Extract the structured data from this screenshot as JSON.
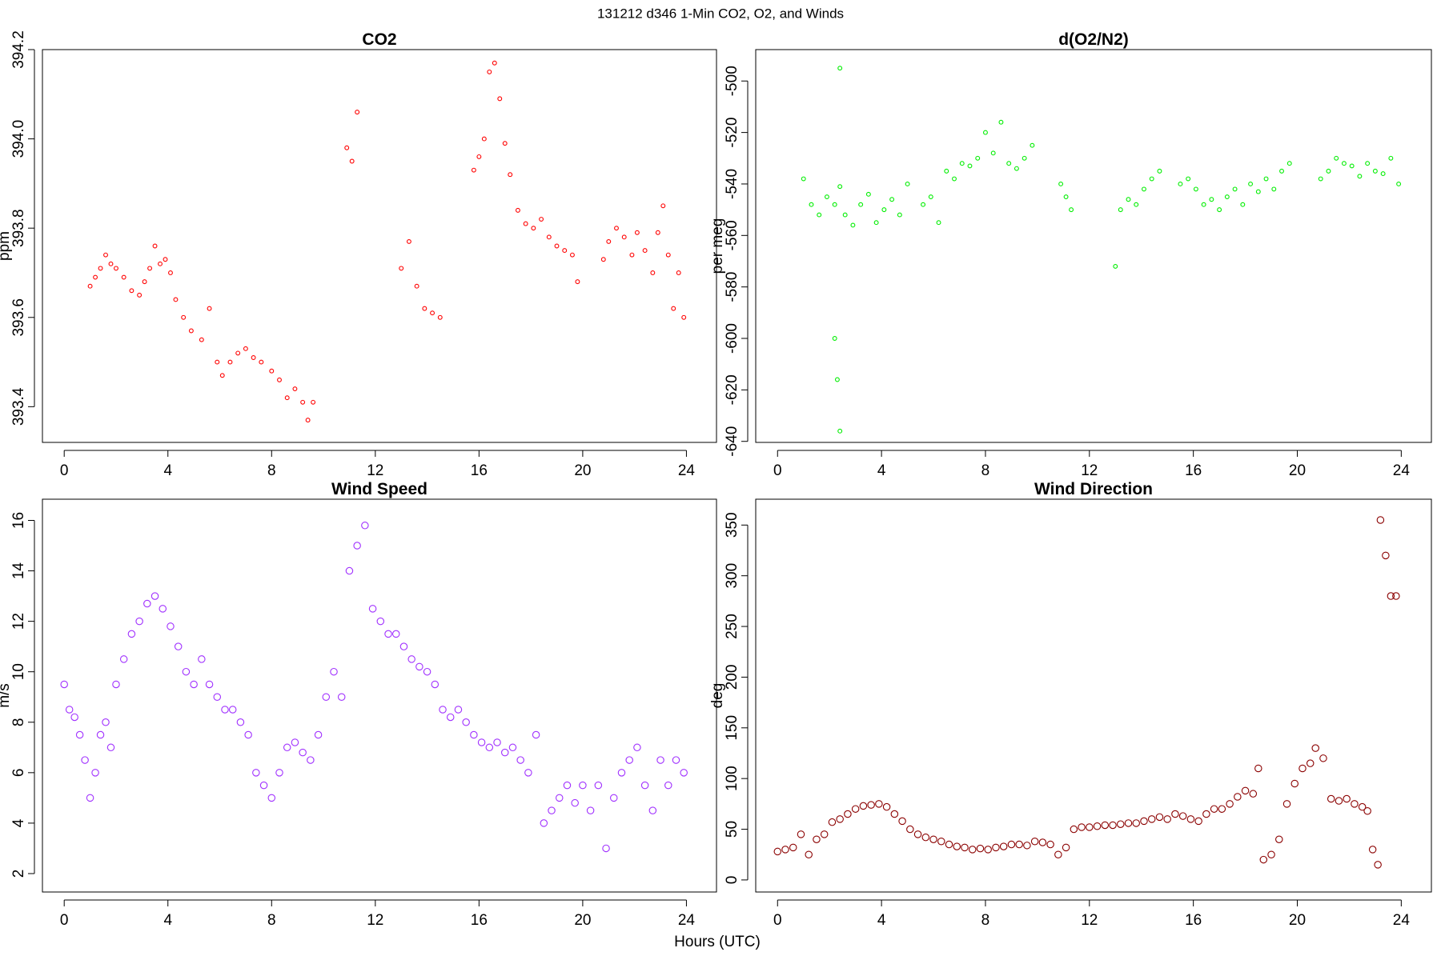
{
  "title": "131212   d346   1-Min CO2, O2, and Winds",
  "xlabel": "Hours (UTC)",
  "chart_data": [
    {
      "type": "scatter",
      "title": "CO2",
      "ylabel": "ppm",
      "color": "#ff0000",
      "xlim": [
        -0.84,
        25.16
      ],
      "ylim": [
        393.32,
        394.2
      ],
      "xticks": [
        0,
        4,
        8,
        12,
        16,
        20,
        24
      ],
      "yticks": [
        393.4,
        393.6,
        393.8,
        {
          "value": 394,
          "label": "394.0"
        },
        394.2
      ],
      "x": [
        1.0,
        1.2,
        1.4,
        1.6,
        1.8,
        2.0,
        2.3,
        2.6,
        2.9,
        3.1,
        3.3,
        3.5,
        3.7,
        3.9,
        4.1,
        4.3,
        4.6,
        4.9,
        5.3,
        5.6,
        5.9,
        6.1,
        6.4,
        6.7,
        7.0,
        7.3,
        7.6,
        8.0,
        8.3,
        8.6,
        8.9,
        9.2,
        9.4,
        9.6,
        10.9,
        11.1,
        11.3,
        13.0,
        13.3,
        13.6,
        13.9,
        14.2,
        14.5,
        15.8,
        16.0,
        16.2,
        16.4,
        16.6,
        16.8,
        17.0,
        17.2,
        17.5,
        17.8,
        18.1,
        18.4,
        18.7,
        19.0,
        19.3,
        19.6,
        19.8,
        20.8,
        21.0,
        21.3,
        21.6,
        21.9,
        22.1,
        22.4,
        22.7,
        22.9,
        23.1,
        23.3,
        23.5,
        23.7,
        23.9
      ],
      "values": [
        393.67,
        393.69,
        393.71,
        393.74,
        393.72,
        393.71,
        393.69,
        393.66,
        393.65,
        393.68,
        393.71,
        393.76,
        393.72,
        393.73,
        393.7,
        393.64,
        393.6,
        393.57,
        393.55,
        393.62,
        393.5,
        393.47,
        393.5,
        393.52,
        393.53,
        393.51,
        393.5,
        393.48,
        393.46,
        393.42,
        393.44,
        393.41,
        393.37,
        393.41,
        393.98,
        393.95,
        394.06,
        393.71,
        393.77,
        393.67,
        393.62,
        393.61,
        393.6,
        393.93,
        393.96,
        394.0,
        394.15,
        394.17,
        394.09,
        393.99,
        393.92,
        393.84,
        393.81,
        393.8,
        393.82,
        393.78,
        393.76,
        393.75,
        393.74,
        393.68,
        393.73,
        393.77,
        393.8,
        393.78,
        393.74,
        393.79,
        393.75,
        393.7,
        393.79,
        393.85,
        393.74,
        393.62,
        393.7,
        393.6
      ]
    },
    {
      "type": "scatter",
      "title": "d(O2/N2)",
      "ylabel": "per meg",
      "color": "#00ee00",
      "xlim": [
        -0.84,
        25.16
      ],
      "ylim": [
        -640.4,
        -487.8
      ],
      "xticks": [
        0,
        4,
        8,
        12,
        16,
        20,
        24
      ],
      "yticks": [
        -640,
        -620,
        -600,
        -580,
        -560,
        -540,
        -520,
        -500
      ],
      "x": [
        1.0,
        1.3,
        1.6,
        1.9,
        2.2,
        2.4,
        2.2,
        2.3,
        2.4,
        2.4,
        2.6,
        2.9,
        3.2,
        3.5,
        3.8,
        4.1,
        4.4,
        4.7,
        5.0,
        5.6,
        5.9,
        6.2,
        6.5,
        6.8,
        7.1,
        7.4,
        7.7,
        8.0,
        8.3,
        8.6,
        8.9,
        9.2,
        9.5,
        9.8,
        10.9,
        11.1,
        11.3,
        13.0,
        13.2,
        13.5,
        13.8,
        14.1,
        14.4,
        14.7,
        15.5,
        15.8,
        16.1,
        16.4,
        16.7,
        17.0,
        17.3,
        17.6,
        17.9,
        18.2,
        18.5,
        18.8,
        19.1,
        19.4,
        19.7,
        20.9,
        21.2,
        21.5,
        21.8,
        22.1,
        22.4,
        22.7,
        23.0,
        23.3,
        23.6,
        23.9
      ],
      "values": [
        -538,
        -548,
        -552,
        -545,
        -548,
        -541,
        -600,
        -616,
        -495,
        -636,
        -552,
        -556,
        -548,
        -544,
        -555,
        -550,
        -546,
        -552,
        -540,
        -548,
        -545,
        -555,
        -535,
        -538,
        -532,
        -533,
        -530,
        -520,
        -528,
        -516,
        -532,
        -534,
        -530,
        -525,
        -540,
        -545,
        -550,
        -572,
        -550,
        -546,
        -548,
        -542,
        -538,
        -535,
        -540,
        -538,
        -542,
        -548,
        -546,
        -550,
        -545,
        -542,
        -548,
        -540,
        -543,
        -538,
        -542,
        -535,
        -532,
        -538,
        -535,
        -530,
        -532,
        -533,
        -537,
        -532,
        -535,
        -536,
        -530,
        -540
      ]
    },
    {
      "type": "scatter",
      "title": "Wind Speed",
      "ylabel": "m/s",
      "color": "#a030ff",
      "xlim": [
        -0.84,
        25.16
      ],
      "ylim": [
        1.27,
        16.84
      ],
      "xticks": [
        0,
        4,
        8,
        12,
        16,
        20,
        24
      ],
      "yticks": [
        2,
        4,
        6,
        8,
        10,
        12,
        14,
        16
      ],
      "x": [
        0.0,
        0.2,
        0.4,
        0.6,
        0.8,
        1.0,
        1.2,
        1.4,
        1.6,
        1.8,
        2.0,
        2.3,
        2.6,
        2.9,
        3.2,
        3.5,
        3.8,
        4.1,
        4.4,
        4.7,
        5.0,
        5.3,
        5.6,
        5.9,
        6.2,
        6.5,
        6.8,
        7.1,
        7.4,
        7.7,
        8.0,
        8.3,
        8.6,
        8.9,
        9.2,
        9.5,
        9.8,
        10.1,
        10.4,
        10.7,
        11.0,
        11.3,
        11.6,
        11.9,
        12.2,
        12.5,
        12.8,
        13.1,
        13.4,
        13.7,
        14.0,
        14.3,
        14.6,
        14.9,
        15.2,
        15.5,
        15.8,
        16.1,
        16.4,
        16.7,
        17.0,
        17.3,
        17.6,
        17.9,
        18.2,
        18.5,
        18.8,
        19.1,
        19.4,
        19.7,
        20.0,
        20.3,
        20.6,
        20.9,
        21.2,
        21.5,
        21.8,
        22.1,
        22.4,
        22.7,
        23.0,
        23.3,
        23.6,
        23.9
      ],
      "values": [
        9.5,
        8.5,
        8.2,
        7.5,
        6.5,
        5.0,
        6.0,
        7.5,
        8.0,
        7.0,
        9.5,
        10.5,
        11.5,
        12.0,
        12.7,
        13.0,
        12.5,
        11.8,
        11.0,
        10.0,
        9.5,
        10.5,
        9.5,
        9.0,
        8.5,
        8.5,
        8.0,
        7.5,
        6.0,
        5.5,
        5.0,
        6.0,
        7.0,
        7.2,
        6.8,
        6.5,
        7.5,
        9.0,
        10.0,
        9.0,
        14.0,
        15.0,
        15.8,
        12.5,
        12.0,
        11.5,
        11.5,
        11.0,
        10.5,
        10.2,
        10.0,
        9.5,
        8.5,
        8.2,
        8.5,
        8.0,
        7.5,
        7.2,
        7.0,
        7.2,
        6.8,
        7.0,
        6.5,
        6.0,
        7.5,
        4.0,
        4.5,
        5.0,
        5.5,
        4.8,
        5.5,
        4.5,
        5.5,
        3.0,
        5.0,
        6.0,
        6.5,
        7.0,
        5.5,
        4.5,
        6.5,
        5.5,
        6.5,
        6.0
      ]
    },
    {
      "type": "scatter",
      "title": "Wind Direction",
      "ylabel": "deg",
      "color": "#8b0000",
      "xlim": [
        -0.84,
        25.16
      ],
      "ylim": [
        -11.9,
        375.5
      ],
      "xticks": [
        0,
        4,
        8,
        12,
        16,
        20,
        24
      ],
      "yticks": [
        0,
        50,
        100,
        150,
        200,
        250,
        300,
        350
      ],
      "x": [
        0.0,
        0.3,
        0.6,
        0.9,
        1.2,
        1.5,
        1.8,
        2.1,
        2.4,
        2.7,
        3.0,
        3.3,
        3.6,
        3.9,
        4.2,
        4.5,
        4.8,
        5.1,
        5.4,
        5.7,
        6.0,
        6.3,
        6.6,
        6.9,
        7.2,
        7.5,
        7.8,
        8.1,
        8.4,
        8.7,
        9.0,
        9.3,
        9.6,
        9.9,
        10.2,
        10.5,
        10.8,
        11.1,
        11.4,
        11.7,
        12.0,
        12.3,
        12.6,
        12.9,
        13.2,
        13.5,
        13.8,
        14.1,
        14.4,
        14.7,
        15.0,
        15.3,
        15.6,
        15.9,
        16.2,
        16.5,
        16.8,
        17.1,
        17.4,
        17.7,
        18.0,
        18.3,
        18.5,
        18.7,
        19.0,
        19.3,
        19.6,
        19.9,
        20.2,
        20.5,
        20.7,
        21.0,
        21.3,
        21.6,
        21.9,
        22.2,
        22.5,
        22.7,
        22.9,
        23.1,
        23.2,
        23.4,
        23.6,
        23.8
      ],
      "values": [
        28,
        30,
        32,
        45,
        25,
        40,
        45,
        57,
        60,
        65,
        70,
        73,
        74,
        75,
        72,
        65,
        58,
        50,
        45,
        42,
        40,
        38,
        35,
        33,
        32,
        30,
        31,
        30,
        32,
        33,
        35,
        35,
        34,
        38,
        37,
        35,
        25,
        32,
        50,
        52,
        52,
        53,
        54,
        54,
        55,
        56,
        56,
        58,
        60,
        62,
        60,
        65,
        63,
        60,
        58,
        65,
        70,
        70,
        75,
        82,
        88,
        85,
        110,
        20,
        25,
        40,
        75,
        95,
        110,
        115,
        130,
        120,
        80,
        78,
        80,
        75,
        72,
        68,
        30,
        15,
        355,
        320,
        280,
        280
      ]
    }
  ]
}
